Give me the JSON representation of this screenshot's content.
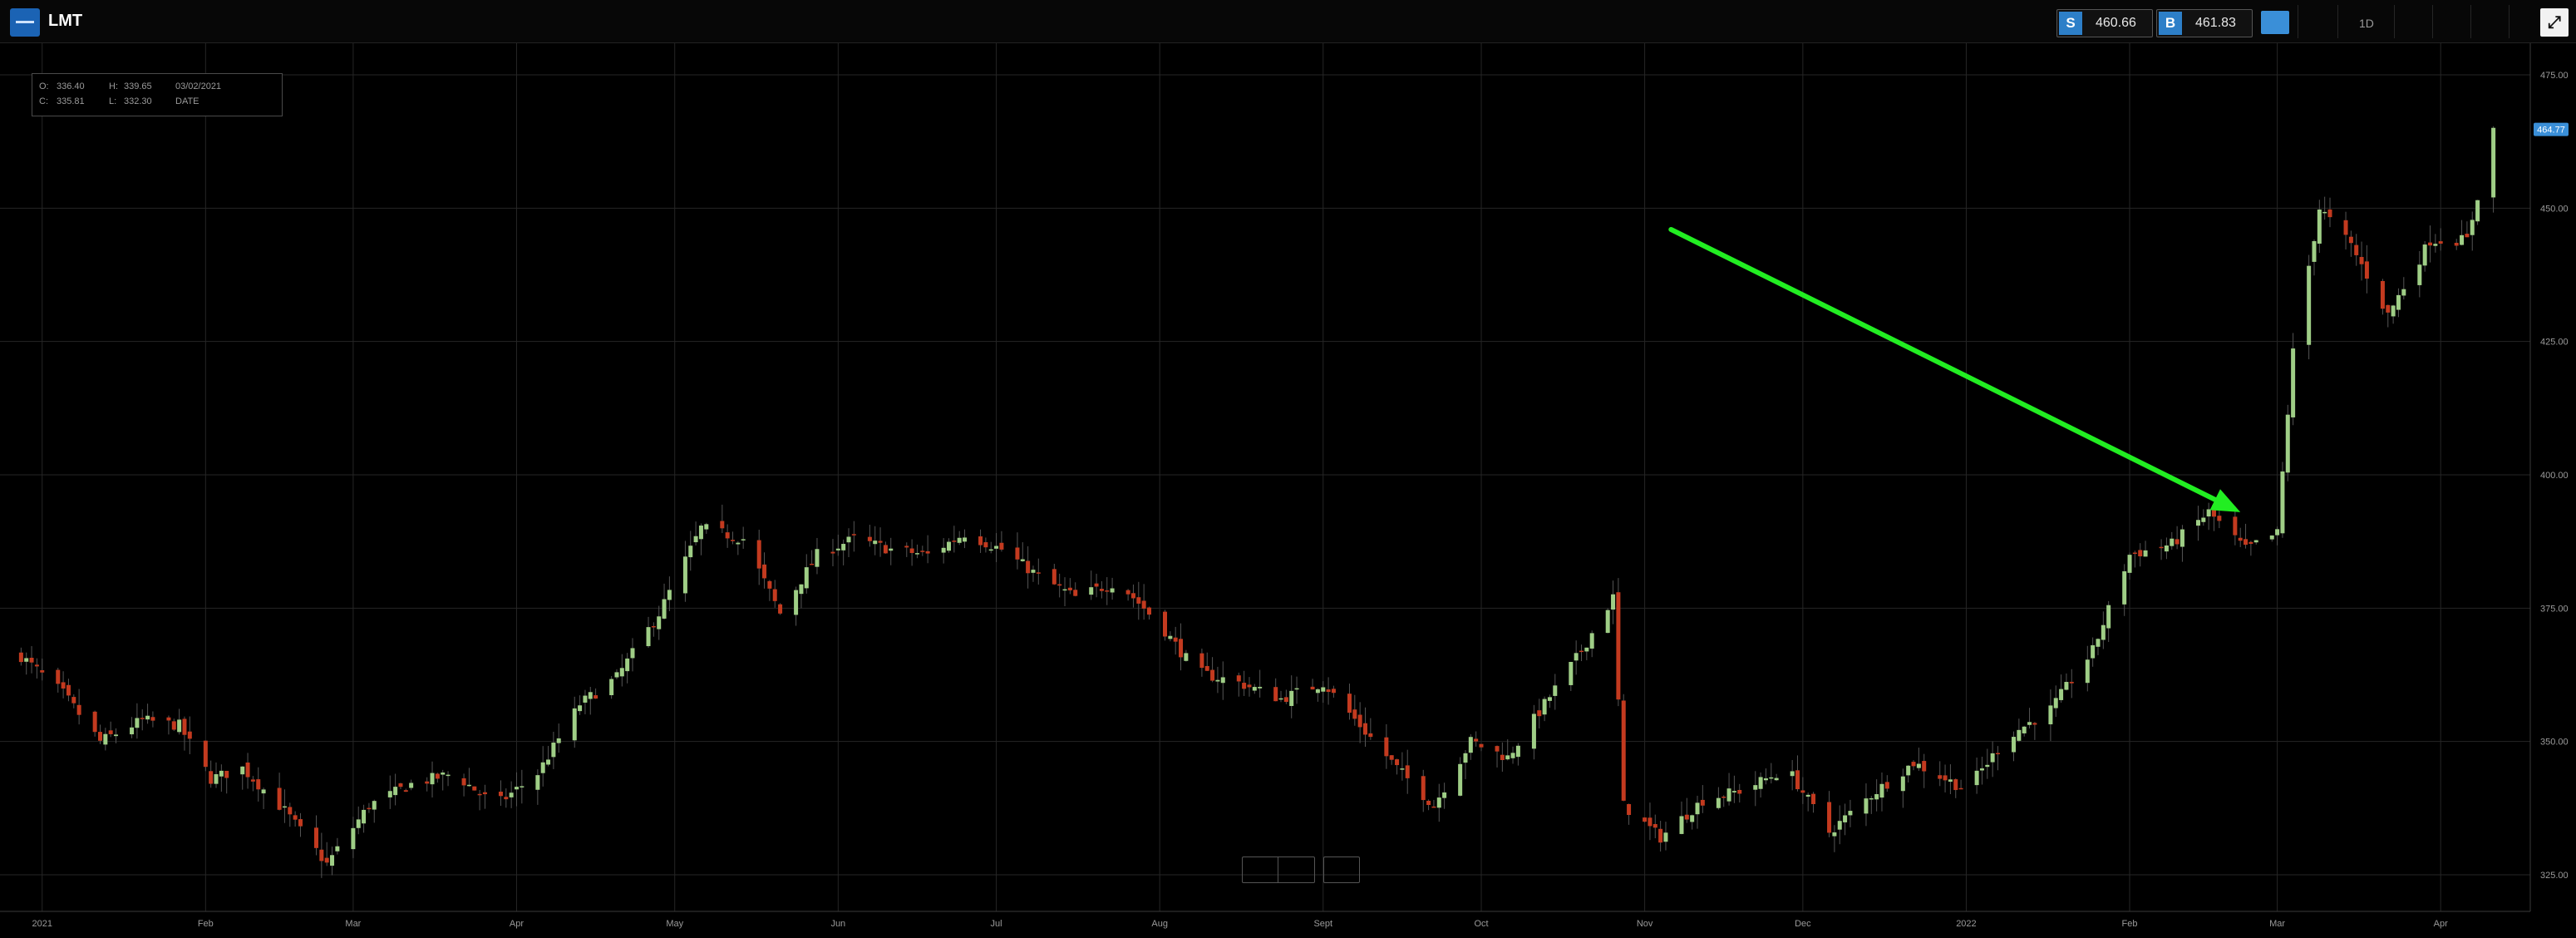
{
  "header": {
    "ticker": "LMT",
    "sell_badge": "S",
    "sell_price": "460.66",
    "buy_badge": "B",
    "buy_price": "461.83",
    "period": "1D",
    "expand_icon": "expand-arrows-icon",
    "logo_icon": "broker-logo-icon"
  },
  "ohlc": {
    "o_label": "O:",
    "o_value": "336.40",
    "h_label": "H:",
    "h_value": "339.65",
    "c_label": "C:",
    "c_value": "335.81",
    "l_label": "L:",
    "l_value": "332.30",
    "date": "03/02/2021",
    "date_label": "DATE"
  },
  "colors": {
    "up": "#9fce86",
    "down": "#c33a1f",
    "grid": "#262626",
    "annotation": "#22ee22",
    "price_tag": "#3a8fd8"
  },
  "chart_data": {
    "type": "candlestick",
    "symbol": "LMT",
    "ylim": [
      320,
      480
    ],
    "y_ticks": [
      "475.00",
      "450.00",
      "425.00",
      "400.00",
      "375.00",
      "350.00",
      "325.00"
    ],
    "x_ticks": [
      "2021",
      "Feb",
      "Mar",
      "Apr",
      "May",
      "Jun",
      "Jul",
      "Aug",
      "Sept",
      "Oct",
      "Nov",
      "Dec",
      "2022",
      "Feb",
      "Mar",
      "Apr"
    ],
    "last_price_label": "464.77",
    "last_price": 464.77,
    "grid": true,
    "close_path": [
      [
        "2020-12-28",
        366
      ],
      [
        "2021-01-05",
        359
      ],
      [
        "2021-01-12",
        350
      ],
      [
        "2021-01-20",
        354
      ],
      [
        "2021-01-27",
        353
      ],
      [
        "2021-02-02",
        343
      ],
      [
        "2021-02-08",
        345
      ],
      [
        "2021-02-16",
        337
      ],
      [
        "2021-02-24",
        327
      ],
      [
        "2021-03-04",
        338
      ],
      [
        "2021-03-12",
        342
      ],
      [
        "2021-03-20",
        344
      ],
      [
        "2021-03-28",
        338
      ],
      [
        "2021-04-05",
        344
      ],
      [
        "2021-04-13",
        357
      ],
      [
        "2021-04-20",
        362
      ],
      [
        "2021-04-28",
        374
      ],
      [
        "2021-05-06",
        390
      ],
      [
        "2021-05-14",
        388
      ],
      [
        "2021-05-21",
        374
      ],
      [
        "2021-05-28",
        385
      ],
      [
        "2021-06-04",
        388
      ],
      [
        "2021-06-11",
        386
      ],
      [
        "2021-06-18",
        385
      ],
      [
        "2021-06-25",
        389
      ],
      [
        "2021-07-02",
        386
      ],
      [
        "2021-07-09",
        381
      ],
      [
        "2021-07-16",
        377
      ],
      [
        "2021-07-24",
        380
      ],
      [
        "2021-08-01",
        372
      ],
      [
        "2021-08-08",
        363
      ],
      [
        "2021-08-16",
        361
      ],
      [
        "2021-08-24",
        358
      ],
      [
        "2021-09-01",
        361
      ],
      [
        "2021-09-08",
        353
      ],
      [
        "2021-09-15",
        345
      ],
      [
        "2021-09-22",
        338
      ],
      [
        "2021-09-29",
        350
      ],
      [
        "2021-10-06",
        347
      ],
      [
        "2021-10-13",
        357
      ],
      [
        "2021-10-20",
        367
      ],
      [
        "2021-10-26",
        377
      ],
      [
        "2021-10-28",
        338
      ],
      [
        "2021-11-04",
        332
      ],
      [
        "2021-11-12",
        339
      ],
      [
        "2021-11-20",
        341
      ],
      [
        "2021-11-28",
        345
      ],
      [
        "2021-12-06",
        333
      ],
      [
        "2021-12-14",
        340
      ],
      [
        "2021-12-22",
        346
      ],
      [
        "2022-01-01",
        341
      ],
      [
        "2022-01-09",
        351
      ],
      [
        "2022-01-17",
        356
      ],
      [
        "2022-01-25",
        367
      ],
      [
        "2022-02-01",
        385
      ],
      [
        "2022-02-09",
        387
      ],
      [
        "2022-02-16",
        393
      ],
      [
        "2022-02-23",
        386
      ],
      [
        "2022-03-01",
        389
      ],
      [
        "2022-03-04",
        423
      ],
      [
        "2022-03-09",
        450
      ],
      [
        "2022-03-15",
        443
      ],
      [
        "2022-03-22",
        430
      ],
      [
        "2022-03-30",
        444
      ],
      [
        "2022-04-06",
        444
      ],
      [
        "2022-04-11",
        464.77
      ]
    ],
    "annotation": {
      "type": "arrow",
      "color": "#22ee22",
      "from": [
        "2021-11-06",
        446
      ],
      "to": [
        "2022-02-22",
        393
      ]
    }
  }
}
